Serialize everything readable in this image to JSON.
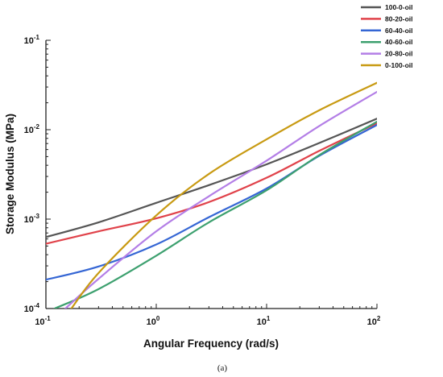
{
  "chart_data": {
    "type": "line",
    "xlabel": "Angular Frequency (rad/s)",
    "ylabel": "Storage Modulus (MPa)",
    "xscale": "log",
    "yscale": "log",
    "xlim": [
      0.1,
      100
    ],
    "ylim": [
      0.0001,
      0.1
    ],
    "xticks": [
      {
        "base": "10",
        "exp": "-1",
        "value": 0.1
      },
      {
        "base": "10",
        "exp": "0",
        "value": 1
      },
      {
        "base": "10",
        "exp": "1",
        "value": 10
      },
      {
        "base": "10",
        "exp": "2",
        "value": 100
      }
    ],
    "yticks": [
      {
        "base": "10",
        "exp": "-4",
        "value": 0.0001
      },
      {
        "base": "10",
        "exp": "-3",
        "value": 0.001
      },
      {
        "base": "10",
        "exp": "-2",
        "value": 0.01
      },
      {
        "base": "10",
        "exp": "-1",
        "value": 0.1
      }
    ],
    "legend_position": "top-right",
    "grid": false,
    "caption": "(a)",
    "series": [
      {
        "name": "100-0-oil",
        "color": "#555555",
        "x": [
          0.1,
          0.3,
          1,
          3,
          10,
          30,
          100
        ],
        "y": [
          0.00063,
          0.00092,
          0.00152,
          0.0024,
          0.0041,
          0.0071,
          0.0133
        ]
      },
      {
        "name": "80-20-oil",
        "color": "#e0424a",
        "x": [
          0.1,
          0.3,
          1,
          3,
          10,
          30,
          100
        ],
        "y": [
          0.00053,
          0.00073,
          0.00102,
          0.00155,
          0.0029,
          0.0058,
          0.0118
        ]
      },
      {
        "name": "60-40-oil",
        "color": "#3566d4",
        "x": [
          0.1,
          0.3,
          1,
          3,
          10,
          30,
          100
        ],
        "y": [
          0.00021,
          0.000295,
          0.00052,
          0.00105,
          0.0022,
          0.0051,
          0.0113
        ]
      },
      {
        "name": "40-60-oil",
        "color": "#3da06f",
        "x": [
          0.12,
          0.3,
          1,
          3,
          10,
          30,
          100
        ],
        "y": [
          0.0001,
          0.000165,
          0.00039,
          0.00092,
          0.0021,
          0.0052,
          0.0123
        ]
      },
      {
        "name": "20-80-oil",
        "color": "#b37ee6",
        "x": [
          0.15,
          0.3,
          1,
          3,
          10,
          30,
          100
        ],
        "y": [
          0.0001,
          0.000215,
          0.00073,
          0.0018,
          0.0045,
          0.011,
          0.0265
        ]
      },
      {
        "name": "0-100-oil",
        "color": "#c89a12",
        "x": [
          0.17,
          0.3,
          1,
          3,
          10,
          30,
          100
        ],
        "y": [
          0.0001,
          0.00025,
          0.0011,
          0.0032,
          0.0078,
          0.0165,
          0.0335
        ]
      }
    ]
  }
}
